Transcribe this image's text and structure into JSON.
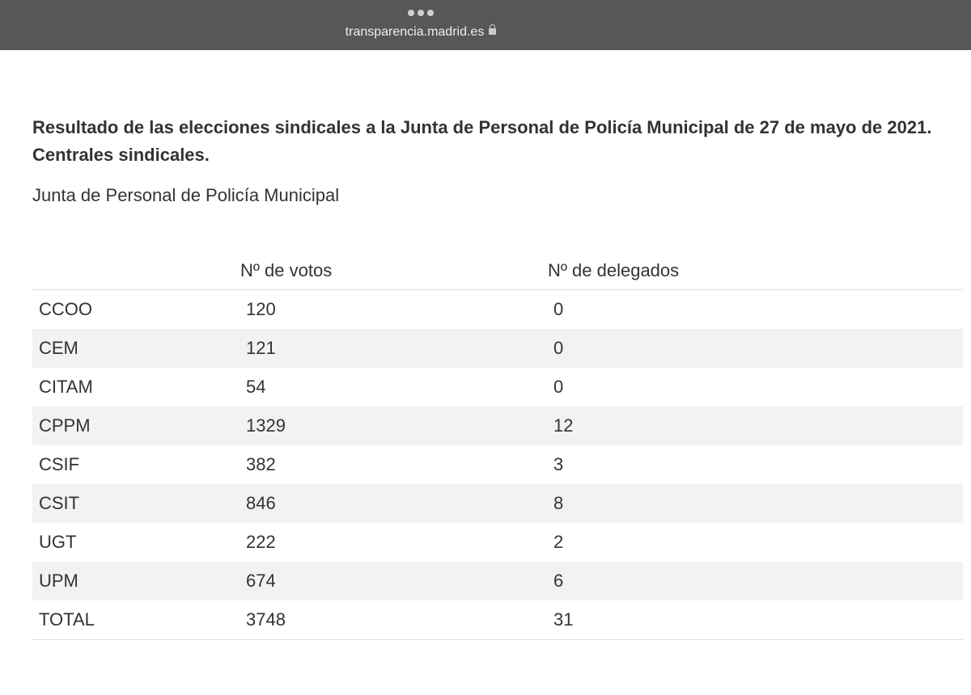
{
  "browser": {
    "url": "transparencia.madrid.es"
  },
  "header": {
    "title": "Resultado de las elecciones sindicales a la Junta de Personal de Policía Municipal de 27 de mayo de 2021. Centrales sindicales.",
    "subtitle": "Junta de Personal de Policía Municipal"
  },
  "table": {
    "columns": [
      "",
      "Nº de votos",
      "Nº de delegados"
    ],
    "rows": [
      [
        "CCOO",
        120,
        0
      ],
      [
        "CEM",
        121,
        0
      ],
      [
        "CITAM",
        54,
        0
      ],
      [
        "CPPM",
        1329,
        12
      ],
      [
        "CSIF",
        382,
        3
      ],
      [
        "CSIT",
        846,
        8
      ],
      [
        "UGT",
        222,
        2
      ],
      [
        "UPM",
        674,
        6
      ],
      [
        "TOTAL",
        3748,
        31
      ]
    ]
  }
}
